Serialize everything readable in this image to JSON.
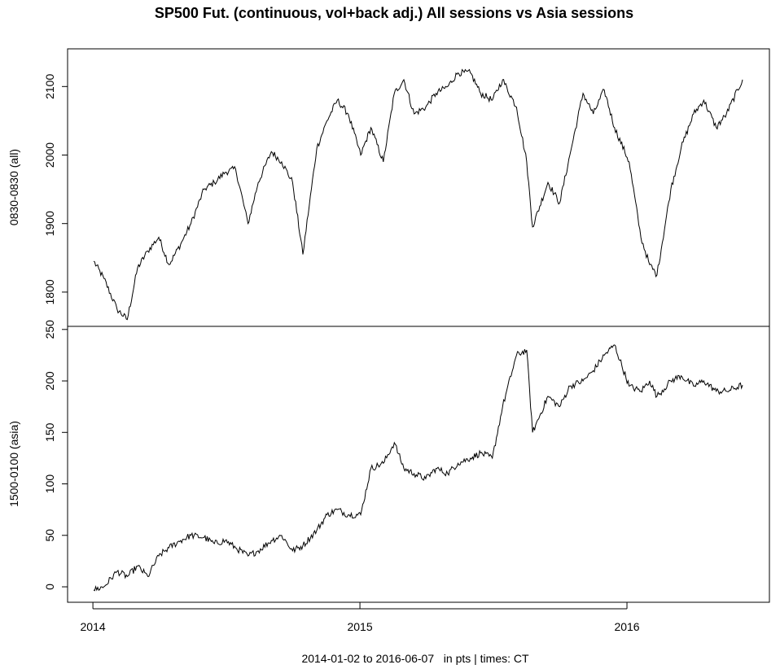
{
  "title": "SP500 Fut. (continuous, vol+back adj.) All sessions vs Asia sessions",
  "footer": "2014-01-02 to 2016-06-07   in pts | times: CT",
  "chart_data": [
    {
      "type": "line",
      "ylabel": "0830-0830 (all)",
      "ylim": [
        1750,
        2155
      ],
      "yticks": [
        "1800",
        "1900",
        "2000",
        "2100"
      ],
      "x": [
        "2014-01-02",
        "2014-01-16",
        "2014-02-03",
        "2014-02-17",
        "2014-03-03",
        "2014-03-17",
        "2014-04-01",
        "2014-04-15",
        "2014-05-01",
        "2014-05-15",
        "2014-06-02",
        "2014-06-16",
        "2014-07-01",
        "2014-07-15",
        "2014-08-01",
        "2014-08-15",
        "2014-09-02",
        "2014-09-16",
        "2014-10-01",
        "2014-10-15",
        "2014-11-03",
        "2014-11-17",
        "2014-12-01",
        "2014-12-16",
        "2015-01-02",
        "2015-01-16",
        "2015-02-02",
        "2015-02-17",
        "2015-03-02",
        "2015-03-16",
        "2015-04-01",
        "2015-04-15",
        "2015-05-01",
        "2015-05-15",
        "2015-06-01",
        "2015-06-15",
        "2015-07-01",
        "2015-07-15",
        "2015-08-03",
        "2015-08-17",
        "2015-08-25",
        "2015-09-15",
        "2015-10-01",
        "2015-10-15",
        "2015-11-02",
        "2015-11-16",
        "2015-12-01",
        "2015-12-15",
        "2016-01-04",
        "2016-01-20",
        "2016-02-01",
        "2016-02-11",
        "2016-03-01",
        "2016-03-15",
        "2016-04-01",
        "2016-04-15",
        "2016-05-02",
        "2016-05-16",
        "2016-06-07"
      ],
      "values": [
        1845,
        1820,
        1775,
        1760,
        1835,
        1860,
        1880,
        1840,
        1870,
        1900,
        1950,
        1960,
        1975,
        1980,
        1900,
        1960,
        2005,
        1990,
        1960,
        1855,
        2010,
        2050,
        2080,
        2060,
        2000,
        2040,
        1990,
        2090,
        2110,
        2060,
        2070,
        2090,
        2100,
        2120,
        2120,
        2090,
        2080,
        2110,
        2070,
        1990,
        1895,
        1960,
        1930,
        2000,
        2090,
        2060,
        2095,
        2040,
        1990,
        1880,
        1840,
        1825,
        1950,
        2010,
        2060,
        2080,
        2040,
        2060,
        2110
      ]
    },
    {
      "type": "line",
      "ylabel": "1500-0100 (asia)",
      "ylim": [
        -15,
        253
      ],
      "yticks": [
        "0",
        "50",
        "100",
        "150",
        "200",
        "250"
      ],
      "xticks": [
        "2014",
        "2015",
        "2016"
      ],
      "x": [
        "2014-01-02",
        "2014-01-16",
        "2014-02-03",
        "2014-02-17",
        "2014-03-03",
        "2014-03-17",
        "2014-04-01",
        "2014-04-15",
        "2014-05-01",
        "2014-05-15",
        "2014-06-02",
        "2014-06-16",
        "2014-07-01",
        "2014-07-15",
        "2014-08-01",
        "2014-08-15",
        "2014-09-02",
        "2014-09-16",
        "2014-10-01",
        "2014-10-15",
        "2014-11-03",
        "2014-11-17",
        "2014-12-01",
        "2014-12-16",
        "2015-01-02",
        "2015-01-16",
        "2015-02-02",
        "2015-02-17",
        "2015-03-02",
        "2015-03-16",
        "2015-04-01",
        "2015-04-15",
        "2015-05-01",
        "2015-05-15",
        "2015-06-01",
        "2015-06-15",
        "2015-07-01",
        "2015-07-15",
        "2015-08-03",
        "2015-08-17",
        "2015-08-25",
        "2015-09-15",
        "2015-10-01",
        "2015-10-15",
        "2015-11-02",
        "2015-11-16",
        "2015-12-01",
        "2015-12-15",
        "2016-01-04",
        "2016-01-20",
        "2016-02-01",
        "2016-02-11",
        "2016-03-01",
        "2016-03-15",
        "2016-04-01",
        "2016-04-15",
        "2016-05-02",
        "2016-05-16",
        "2016-06-07"
      ],
      "values": [
        -3,
        0,
        15,
        10,
        20,
        10,
        30,
        38,
        45,
        50,
        48,
        42,
        45,
        38,
        30,
        35,
        45,
        50,
        35,
        40,
        55,
        70,
        75,
        70,
        70,
        115,
        120,
        140,
        115,
        110,
        105,
        115,
        110,
        120,
        125,
        130,
        125,
        175,
        225,
        230,
        150,
        185,
        175,
        195,
        200,
        210,
        225,
        235,
        195,
        190,
        200,
        185,
        200,
        205,
        195,
        200,
        190,
        190,
        196
      ]
    }
  ]
}
